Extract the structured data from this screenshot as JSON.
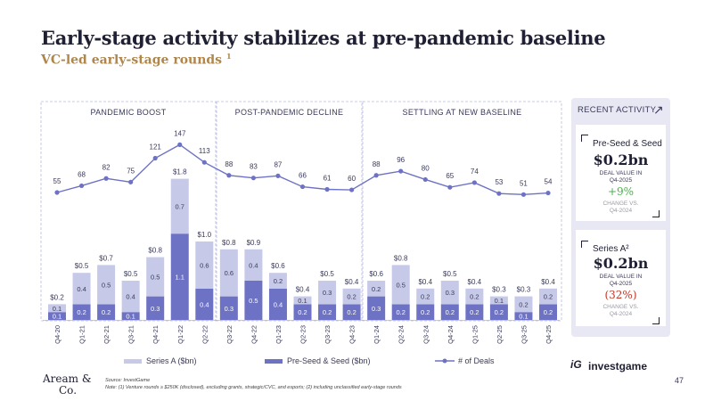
{
  "header": {
    "title": "Early-stage activity stabilizes at pre-pandemic baseline",
    "subtitle": "VC-led early-stage rounds",
    "subtitle_sup": "1"
  },
  "chart_data": {
    "type": "bar",
    "stacked": true,
    "categories": [
      "Q4-20",
      "Q1-21",
      "Q2-21",
      "Q3-21",
      "Q4-21",
      "Q1-22",
      "Q2-22",
      "Q3-22",
      "Q4-22",
      "Q1-23",
      "Q2-23",
      "Q3-23",
      "Q4-23",
      "Q1-24",
      "Q2-24",
      "Q3-24",
      "Q4-24",
      "Q1-25",
      "Q2-25",
      "Q3-25",
      "Q4-25"
    ],
    "totals": [
      "$0.2",
      "$0.5",
      "$0.7",
      "$0.5",
      "$0.8",
      "$1.8",
      "$1.0",
      "$0.8",
      "$0.9",
      "$0.6",
      "$0.4",
      "$0.5",
      "$0.4",
      "$0.6",
      "$0.8",
      "$0.4",
      "$0.5",
      "$0.4",
      "$0.3",
      "$0.3",
      "$0.4"
    ],
    "series": [
      {
        "name": "Pre-Seed & Seed ($bn)",
        "color": "#6e72c4",
        "values": [
          0.1,
          0.2,
          0.2,
          0.1,
          0.3,
          1.1,
          0.4,
          0.3,
          0.5,
          0.4,
          0.2,
          0.2,
          0.2,
          0.3,
          0.2,
          0.2,
          0.2,
          0.2,
          0.2,
          0.1,
          0.2
        ]
      },
      {
        "name": "Series A ($bn)",
        "color": "#c7c9e8",
        "values": [
          0.1,
          0.4,
          0.5,
          0.4,
          0.5,
          0.7,
          0.6,
          0.6,
          0.4,
          0.2,
          0.1,
          0.3,
          0.2,
          0.2,
          0.5,
          0.2,
          0.3,
          0.2,
          0.1,
          0.2,
          0.2
        ]
      }
    ],
    "line": {
      "name": "# of Deals",
      "color": "#6e72c4",
      "values": [
        55,
        68,
        82,
        75,
        121,
        147,
        113,
        88,
        83,
        87,
        66,
        61,
        60,
        88,
        96,
        80,
        65,
        74,
        53,
        51,
        54
      ]
    },
    "phases": [
      {
        "label": "PANDEMIC BOOST",
        "from": 0,
        "to": 6
      },
      {
        "label": "POST-PANDEMIC DECLINE",
        "from": 7,
        "to": 12
      },
      {
        "label": "SETTLING AT NEW BASELINE",
        "from": 13,
        "to": 20
      }
    ],
    "legend": [
      "Series A ($bn)",
      "Pre-Seed & Seed ($bn)",
      "# of Deals"
    ]
  },
  "panel": {
    "heading": "RECENT ACTIVITY",
    "cards": [
      {
        "name": "Pre-Seed & Seed",
        "value": "$0.2bn",
        "caption": "DEAL VALUE IN",
        "period": "Q4-2025",
        "change": "+9%",
        "change_color": "#4caf50",
        "note1": "CHANGE VS.",
        "note2": "Q4-2024"
      },
      {
        "name": "Series A²",
        "value": "$0.2bn",
        "caption": "DEAL VALUE IN",
        "period": "Q4-2025",
        "change": "(32%)",
        "change_color": "#c0392b",
        "note1": "CHANGE VS.",
        "note2": "Q4-2024"
      }
    ]
  },
  "footer": {
    "logo_line1": "Aream &",
    "logo_line2": "Co.",
    "source": "Source: InvestGame",
    "note": "Note: (1) Venture rounds ≥ $250K (disclosed), excluding grants, strategic/CVC, and esports; (2) including unclassified early-stage rounds",
    "brand_mark": "iG",
    "brand": "investgame",
    "page": "47"
  }
}
